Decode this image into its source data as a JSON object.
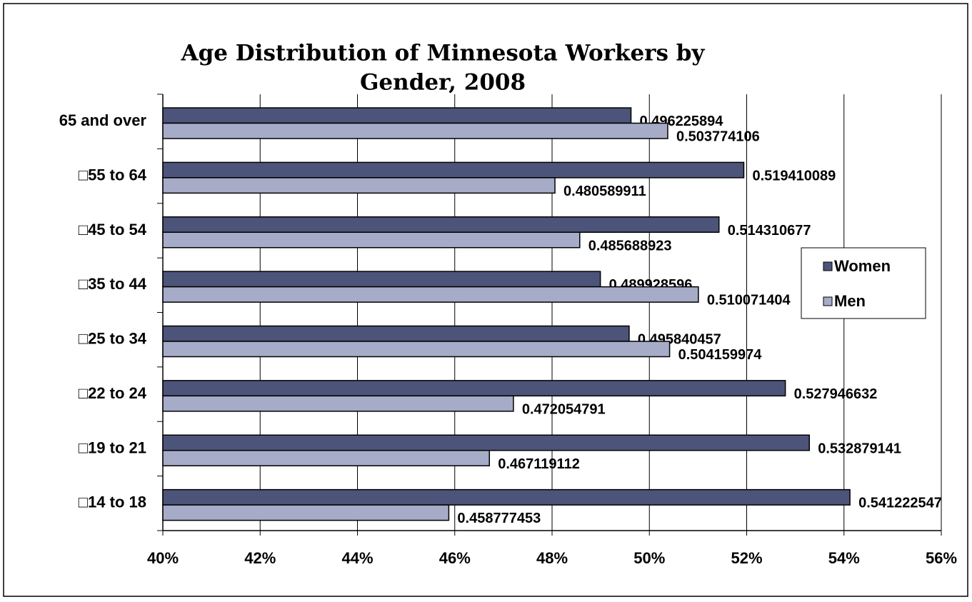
{
  "chart_data": {
    "type": "hbar",
    "title": "Age Distribution of Minnesota Workers by Gender, 2008",
    "title_lines": [
      "Age Distribution of Minnesota Workers by",
      "Gender, 2008"
    ],
    "categories": [
      "65 and over",
      "□55 to 64",
      "□45 to 54",
      "□35 to 44",
      "□25 to 34",
      "□22 to 24",
      "□19 to 21",
      "□14 to 18"
    ],
    "series": [
      {
        "name": "Women",
        "color": "#4d5479",
        "values": [
          49.6225894,
          51.9410089,
          51.4310677,
          48.9928596,
          49.5840457,
          52.7946632,
          53.2879141,
          54.1222547
        ],
        "value_labels": [
          "0.496225894",
          "0.519410089",
          "0.514310677",
          "0.489928596",
          "0.495840457",
          "0.527946632",
          "0.532879141",
          "0.541222547"
        ]
      },
      {
        "name": "Men",
        "color": "#a6abc8",
        "values": [
          50.3774106,
          48.0589911,
          48.5688923,
          51.0071404,
          50.4159974,
          47.2054791,
          46.7119112,
          45.8777453
        ],
        "value_labels": [
          "0.503774106",
          "0.480589911",
          "0.485688923",
          "0.510071404",
          "0.504159974",
          "0.472054791",
          "0.467119112",
          "0.458777453"
        ]
      }
    ],
    "xlim": [
      40,
      56
    ],
    "xticks": [
      {
        "value": 40,
        "label": "40%"
      },
      {
        "value": 42,
        "label": "42%"
      },
      {
        "value": 44,
        "label": "44%"
      },
      {
        "value": 46,
        "label": "46%"
      },
      {
        "value": 48,
        "label": "48%"
      },
      {
        "value": 50,
        "label": "50%"
      },
      {
        "value": 52,
        "label": "52%"
      },
      {
        "value": 54,
        "label": "54%"
      },
      {
        "value": 56,
        "label": "56%"
      }
    ],
    "grid": true,
    "legend": "right"
  }
}
